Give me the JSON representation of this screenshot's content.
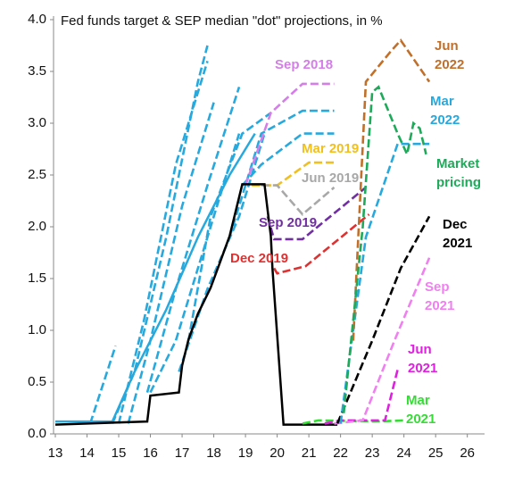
{
  "chart_data": {
    "type": "line",
    "title": "Fed funds target & SEP median \"dot\" projections, in %",
    "xlim": [
      13,
      26.6
    ],
    "ylim": [
      0,
      4
    ],
    "xticks": [
      13,
      14,
      15,
      16,
      17,
      18,
      19,
      20,
      21,
      22,
      23,
      24,
      25,
      26
    ],
    "yticks": [
      {
        "value": 0,
        "label": "0.0"
      },
      0.5,
      {
        "value": 1,
        "label": "1.0"
      },
      1.5,
      {
        "value": 2,
        "label": "2.0"
      },
      2.5,
      {
        "value": 3,
        "label": "3.0"
      },
      3.5,
      {
        "value": 4,
        "label": "4.0"
      }
    ],
    "grid": false,
    "series": [
      {
        "color": "#27a9dd",
        "style": "dashed",
        "x": [
          14.1,
          14.9
        ],
        "values": [
          0.1,
          0.85
        ]
      },
      {
        "color": "#27a9dd",
        "style": "dashed",
        "x": [
          14.8,
          15.5,
          16.5,
          17.5,
          17.8
        ],
        "values": [
          0.1,
          0.6,
          1.9,
          3.4,
          3.75
        ]
      },
      {
        "color": "#27a9dd",
        "style": "dashed",
        "x": [
          15.0,
          15.8,
          16.8,
          17.8
        ],
        "values": [
          0.1,
          1.1,
          2.6,
          3.6
        ]
      },
      {
        "color": "#27a9dd",
        "style": "dashed",
        "x": [
          15.3,
          16.0,
          17.0,
          18.0
        ],
        "values": [
          0.1,
          0.9,
          2.2,
          3.2
        ]
      },
      {
        "color": "#27a9dd",
        "style": "dashed",
        "x": [
          15.9,
          16.8,
          17.8,
          18.8
        ],
        "values": [
          0.4,
          1.4,
          2.4,
          3.35
        ]
      },
      {
        "color": "#27a9dd",
        "style": "dashed",
        "x": [
          16.0,
          16.8,
          17.8,
          18.8
        ],
        "values": [
          0.4,
          0.9,
          1.9,
          2.9
        ]
      },
      {
        "color": "#27a9dd",
        "style": "dashed",
        "x": [
          16.9,
          17.8,
          18.8,
          19.6
        ],
        "values": [
          0.6,
          1.4,
          2.1,
          2.9
        ]
      },
      {
        "color": "#27a9dd",
        "style": "dashed",
        "x": [
          17.2,
          17.9,
          18.9,
          19.8
        ],
        "values": [
          0.9,
          2.1,
          2.9,
          3.1
        ]
      },
      {
        "color": "#27a9dd",
        "style": "dashed",
        "x": [
          18.5,
          19.5,
          20.8,
          21.8
        ],
        "values": [
          1.9,
          2.9,
          3.12,
          3.12
        ]
      },
      {
        "color": "#27a9dd",
        "style": "dashed",
        "x": [
          18.9,
          19.5,
          20.8,
          21.8
        ],
        "values": [
          2.4,
          2.6,
          2.9,
          2.9
        ]
      },
      {
        "color": "#27a9dd",
        "style": "solid",
        "x": [
          13,
          14.8,
          15.5,
          16.5,
          17.5,
          18.5,
          19.3
        ],
        "values": [
          0.12,
          0.12,
          0.6,
          1.2,
          1.9,
          2.5,
          2.9
        ]
      },
      {
        "name": "Sep 2018",
        "color": "#d47ee8",
        "style": "dashed",
        "x": [
          19.0,
          19.8,
          20.8,
          21.8
        ],
        "values": [
          2.4,
          3.1,
          3.38,
          3.38
        ]
      },
      {
        "name": "Mar 2019",
        "color": "#f0c020",
        "style": "dashed",
        "x": [
          19.2,
          20.0,
          21.0,
          21.8
        ],
        "values": [
          2.4,
          2.4,
          2.62,
          2.62
        ]
      },
      {
        "name": "Jun 2019",
        "color": "#a8a8a8",
        "style": "dashed",
        "x": [
          19.5,
          20.0,
          20.8,
          21.8
        ],
        "values": [
          2.4,
          2.4,
          2.12,
          2.38
        ]
      },
      {
        "name": "Sep 2019",
        "color": "#7030a0",
        "style": "dashed",
        "x": [
          19.7,
          19.9,
          20.8,
          22.8
        ],
        "values": [
          2.1,
          1.88,
          1.88,
          2.38
        ]
      },
      {
        "name": "Dec 2019",
        "color": "#e03030",
        "style": "dashed",
        "x": [
          19.9,
          20.0,
          20.9,
          22.9
        ],
        "values": [
          1.6,
          1.55,
          1.62,
          2.12
        ]
      },
      {
        "color": "#000000",
        "style": "solid",
        "x": [
          13,
          15.9,
          16.0,
          16.9,
          17.0,
          17.2,
          17.5,
          17.9,
          18.2,
          18.5,
          18.7,
          18.9,
          19.6,
          19.7,
          19.8,
          19.85,
          20.2,
          21.9
        ],
        "values": [
          0.09,
          0.12,
          0.37,
          0.4,
          0.66,
          0.91,
          1.16,
          1.41,
          1.66,
          1.91,
          2.16,
          2.41,
          2.41,
          2.16,
          1.91,
          1.6,
          0.09,
          0.09
        ]
      },
      {
        "name": "Mar 2021",
        "color": "#33dd33",
        "style": "dashed",
        "x": [
          20.8,
          21.3,
          23.1,
          24.0
        ],
        "values": [
          0.1,
          0.13,
          0.12,
          0.13
        ]
      },
      {
        "name": "Jun 2021",
        "color": "#e020e0",
        "style": "dashed",
        "x": [
          21.5,
          22.0,
          23.4,
          23.8
        ],
        "values": [
          0.1,
          0.13,
          0.13,
          0.62
        ]
      },
      {
        "name": "Sep 2021",
        "color": "#f080f0",
        "style": "dashed",
        "x": [
          21.8,
          22.7,
          23.7,
          24.8
        ],
        "values": [
          0.1,
          0.13,
          0.9,
          1.7
        ]
      },
      {
        "name": "Dec 2021",
        "color": "#000000",
        "style": "dashed",
        "x": [
          21.9,
          23.0,
          23.9,
          24.8
        ],
        "values": [
          0.1,
          0.9,
          1.6,
          2.1
        ]
      },
      {
        "name": "Mar 2022",
        "color": "#27a9dd",
        "style": "dashed",
        "x": [
          22.0,
          22.8,
          23.8,
          24.8
        ],
        "values": [
          0.1,
          1.9,
          2.8,
          2.8
        ]
      },
      {
        "name": "Jun 2022",
        "color": "#c0702a",
        "style": "dashed",
        "x": [
          22.4,
          22.8,
          23.6,
          23.9,
          24.8
        ],
        "values": [
          0.9,
          3.4,
          3.7,
          3.8,
          3.4
        ]
      },
      {
        "name": "Market pricing",
        "color": "#1eaa5a",
        "style": "dashed",
        "x": [
          22.1,
          22.7,
          23.0,
          23.2,
          23.8,
          24.1,
          24.3,
          24.5,
          24.7
        ],
        "values": [
          0.2,
          2.0,
          3.3,
          3.35,
          2.9,
          2.7,
          3.0,
          2.95,
          2.7
        ]
      }
    ]
  }
}
